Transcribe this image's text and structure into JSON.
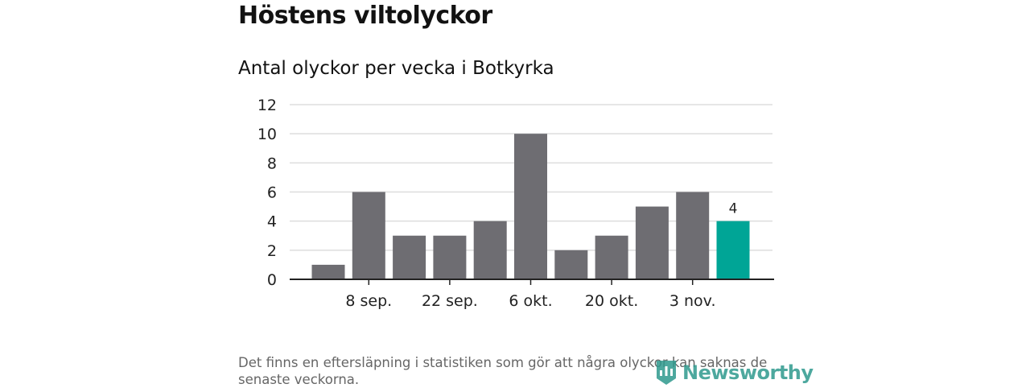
{
  "chart_data": {
    "type": "bar",
    "title": "Höstens viltolyckor",
    "subtitle": "Antal olyckor per vecka i Botkyrka",
    "xlabel": "",
    "ylabel": "",
    "ylim": [
      0,
      12
    ],
    "yticks": [
      0,
      2,
      4,
      6,
      8,
      10,
      12
    ],
    "grid": true,
    "values": [
      1,
      6,
      3,
      3,
      4,
      10,
      2,
      3,
      5,
      6,
      4
    ],
    "x_tick_labels": [
      {
        "index": 1,
        "label": "8 sep."
      },
      {
        "index": 3,
        "label": "22 sep."
      },
      {
        "index": 5,
        "label": "6 okt."
      },
      {
        "index": 7,
        "label": "20 okt."
      },
      {
        "index": 9,
        "label": "3 nov."
      }
    ],
    "highlight_index": 10,
    "highlight_label": "4",
    "colors": {
      "bar": "#6e6d72",
      "highlight": "#00a596",
      "grid": "#dddddd",
      "axis": "#222222"
    }
  },
  "footer": {
    "note": "Det finns en eftersläpning i statistiken som gör att några olyckor kan saknas de senaste veckorna.",
    "logo": "Newsworthy"
  }
}
